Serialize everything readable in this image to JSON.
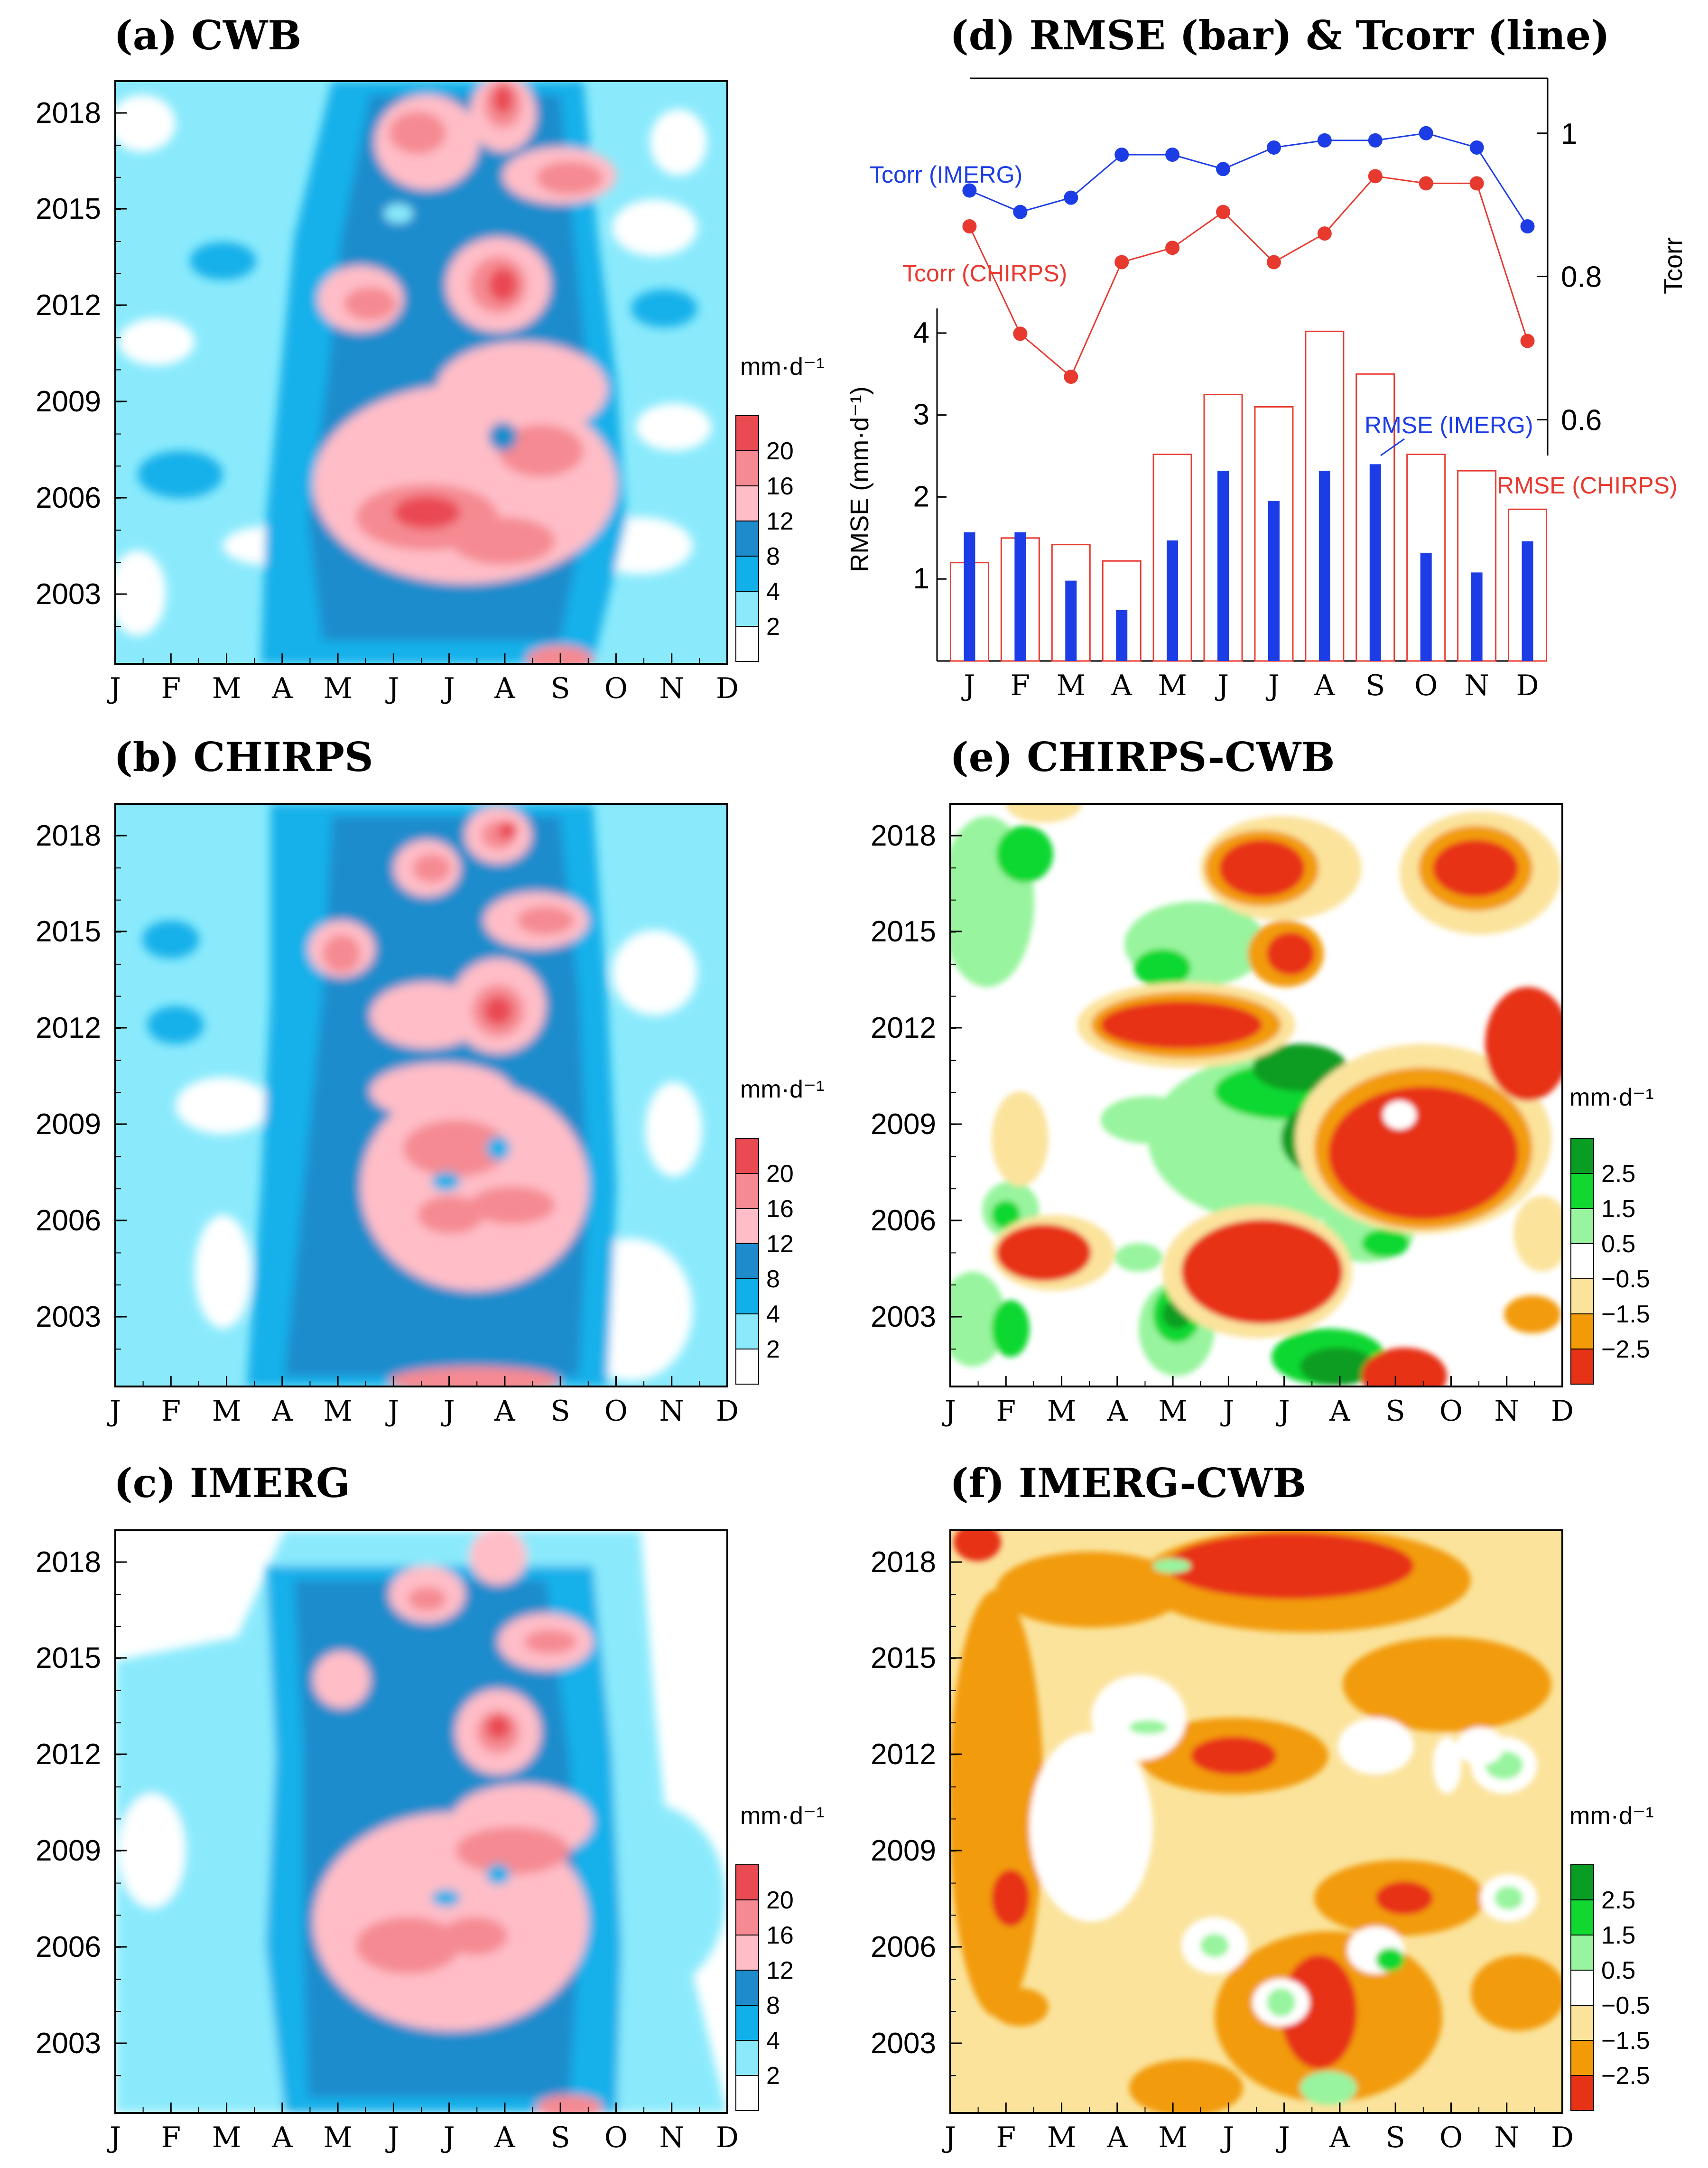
{
  "panels": [
    {
      "title": "(a) CWB",
      "cbar_unit": "mm·d⁻¹",
      "cbar_labels": [
        "20",
        "16",
        "12",
        "8",
        "4",
        "2"
      ]
    },
    {
      "title": "(b) CHIRPS",
      "cbar_unit": "mm·d⁻¹",
      "cbar_labels": [
        "20",
        "16",
        "12",
        "8",
        "4",
        "2"
      ]
    },
    {
      "title": "(c) IMERG",
      "cbar_unit": "mm·d⁻¹",
      "cbar_labels": [
        "20",
        "16",
        "12",
        "8",
        "4",
        "2"
      ]
    },
    {
      "title": "(e) CHIRPS-CWB",
      "cbar_unit": "mm·d⁻¹",
      "cbar_labels": [
        "2.5",
        "1.5",
        "0.5",
        "−0.5",
        "−1.5",
        "−2.5"
      ]
    },
    {
      "title": "(f) IMERG-CWB",
      "cbar_unit": "mm·d⁻¹",
      "cbar_labels": [
        "2.5",
        "1.5",
        "0.5",
        "−0.5",
        "−1.5",
        "−2.5"
      ]
    }
  ],
  "shared": {
    "months": [
      "J",
      "F",
      "M",
      "A",
      "M",
      "J",
      "J",
      "A",
      "S",
      "O",
      "N",
      "D"
    ],
    "years": [
      "2018",
      "2015",
      "2012",
      "2009",
      "2006",
      "2003"
    ]
  },
  "colors": {
    "precip": [
      "#ffffff",
      "#8aeafc",
      "#12b0ea",
      "#1e8ccc",
      "#ffbdc7",
      "#f58a92",
      "#ea4a52"
    ],
    "diff": [
      "#e73216",
      "#f29b07",
      "#fbe39c",
      "#ffffff",
      "#98f49e",
      "#10d831",
      "#0a9d23"
    ]
  },
  "chart_data": {
    "type": "bar",
    "title": "(d) RMSE (bar) & Tcorr (line)",
    "categories": [
      "J",
      "F",
      "M",
      "A",
      "M",
      "J",
      "J",
      "A",
      "S",
      "O",
      "N",
      "D"
    ],
    "ylabel": "RMSE (mm·d⁻¹)",
    "y2label": "Tcorr",
    "ylim": [
      0,
      4.3
    ],
    "y2lim": [
      0.55,
      1.08
    ],
    "yticks": [
      "1",
      "2",
      "3",
      "4"
    ],
    "y2ticks": [
      "0.6",
      "0.8",
      "1"
    ],
    "series": [
      {
        "name": "RMSE (CHIRPS)",
        "kind": "bar",
        "color": "#e8392f",
        "values": [
          1.2,
          1.5,
          1.42,
          1.22,
          2.52,
          3.25,
          3.1,
          4.02,
          3.5,
          2.52,
          2.32,
          1.85
        ]
      },
      {
        "name": "RMSE (IMERG)",
        "kind": "bar",
        "color": "#1c3de6",
        "values": [
          1.57,
          1.57,
          0.98,
          0.62,
          1.47,
          2.32,
          1.95,
          2.32,
          2.4,
          1.32,
          1.08,
          1.46
        ]
      },
      {
        "name": "Tcorr (CHIRPS)",
        "kind": "line",
        "color": "#e8392f",
        "values": [
          0.87,
          0.72,
          0.66,
          0.82,
          0.84,
          0.89,
          0.82,
          0.86,
          0.94,
          0.93,
          0.93,
          0.71
        ]
      },
      {
        "name": "Tcorr (IMERG)",
        "kind": "line",
        "color": "#1c3de6",
        "values": [
          0.92,
          0.89,
          0.91,
          0.97,
          0.97,
          0.95,
          0.98,
          0.99,
          0.99,
          1.0,
          0.98,
          0.87
        ]
      }
    ],
    "annotations": [
      "Tcorr (IMERG)",
      "Tcorr (CHIRPS)",
      "RMSE (IMERG)",
      "RMSE (CHIRPS)"
    ]
  }
}
